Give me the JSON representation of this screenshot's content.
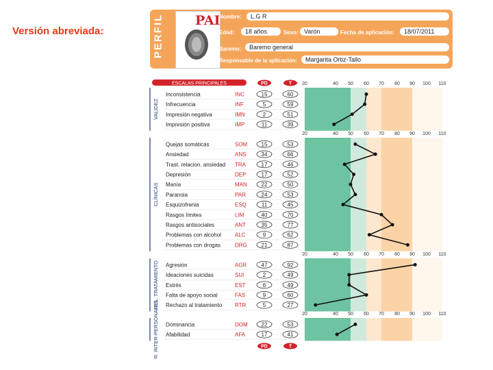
{
  "caption": "Versión abreviada:",
  "header": {
    "perfil": "PERFIL",
    "pai_logo": "PAI",
    "nombre_label": "Nombre:",
    "nombre_value": "L.G R",
    "edad_label": "Edad:",
    "edad_value": "18 años",
    "sexo_label": "Sexo:",
    "sexo_value": "Varón",
    "fecha_label": "Fecha de aplicación:",
    "fecha_value": "18/07/2011",
    "baremo_label": "Baremo:",
    "baremo_value": "Baremo general",
    "responsable_label": "Responsable de la aplicación:",
    "responsable_value": "Margarita Ortiz-Tallo"
  },
  "table_header": {
    "escalas": "ESCALAS PRINCIPALES",
    "pd": "PD",
    "t": "T"
  },
  "axis_ticks": [
    "20",
    "40",
    "50",
    "60",
    "70",
    "80",
    "90",
    "100",
    "110"
  ],
  "sections": [
    {
      "label": "VALIDEZ",
      "rows": [
        {
          "name": "Inconsistencia",
          "abbr": "INC",
          "pd": "15",
          "t": 60
        },
        {
          "name": "Infrecuencia",
          "abbr": "INF",
          "pd": "5",
          "t": 59
        },
        {
          "name": "Impresión negativa",
          "abbr": "IMN",
          "pd": "2",
          "t": 51
        },
        {
          "name": "Impresión positiva",
          "abbr": "IMP",
          "pd": "11",
          "t": 39
        }
      ]
    },
    {
      "label": "CLÍNICAS",
      "rows": [
        {
          "name": "Quejas somáticas",
          "abbr": "SOM",
          "pd": "15",
          "t": 53
        },
        {
          "name": "Ansiedad",
          "abbr": "ANS",
          "pd": "34",
          "t": 66
        },
        {
          "name": "Trast. relacion. ansiedad",
          "abbr": "TRA",
          "pd": "17",
          "t": 46
        },
        {
          "name": "Depresión",
          "abbr": "DEP",
          "pd": "17",
          "t": 52
        },
        {
          "name": "Manía",
          "abbr": "MAN",
          "pd": "22",
          "t": 50
        },
        {
          "name": "Paranoia",
          "abbr": "PAR",
          "pd": "24",
          "t": 53
        },
        {
          "name": "Esquizofrenia",
          "abbr": "ESQ",
          "pd": "11",
          "t": 45
        },
        {
          "name": "Rasgos límites",
          "abbr": "LIM",
          "pd": "40",
          "t": 70
        },
        {
          "name": "Rasgos antisociales",
          "abbr": "ANT",
          "pd": "35",
          "t": 77
        },
        {
          "name": "Problemas con alcohol",
          "abbr": "ALC",
          "pd": "9",
          "t": 62
        },
        {
          "name": "Problemas con drogas",
          "abbr": "DRG",
          "pd": "21",
          "t": 87
        }
      ]
    },
    {
      "label": "REL. TRATAMIENTO",
      "rows": [
        {
          "name": "Agresión",
          "abbr": "AGR",
          "pd": "47",
          "t": 92
        },
        {
          "name": "Ideaciones suicidas",
          "abbr": "SUI",
          "pd": "2",
          "t": 49
        },
        {
          "name": "Estrés",
          "abbr": "EST",
          "pd": "6",
          "t": 49
        },
        {
          "name": "Falta de apoyo social",
          "abbr": "FAS",
          "pd": "9",
          "t": 60
        },
        {
          "name": "Rechazo al tratamiento",
          "abbr": "RTR",
          "pd": "5",
          "t": 27
        }
      ]
    },
    {
      "label": "R. INTER-PERSONALES",
      "rows": [
        {
          "name": "Dominancia",
          "abbr": "DOM",
          "pd": "22",
          "t": 53
        },
        {
          "name": "Afabilidad",
          "abbr": "AFA",
          "pd": "17",
          "t": 41
        }
      ]
    }
  ],
  "footer": {
    "pd": "PD",
    "t": "T"
  },
  "colors": {
    "orange": "#f5a55a",
    "red": "#d2232a",
    "green": "#6ec3a0",
    "light_green": "#cfe9dc",
    "peach": "#fbd3a6",
    "light_peach": "#fde7cf",
    "navy": "#1f3a6e"
  }
}
